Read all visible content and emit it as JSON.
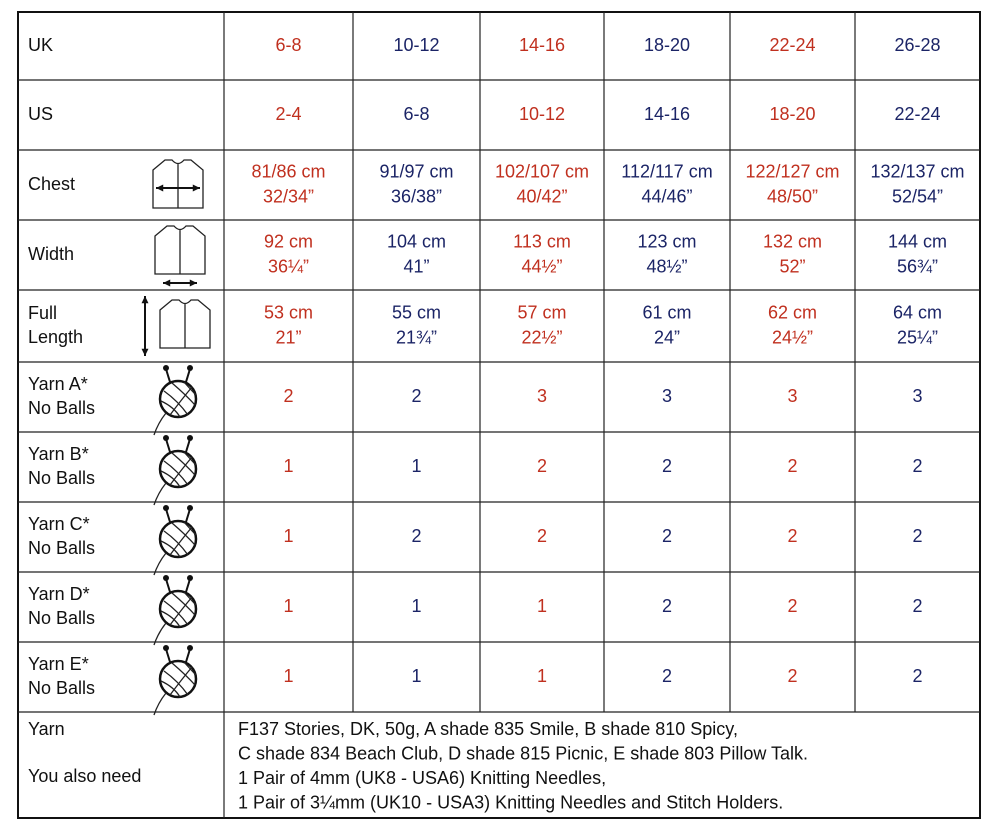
{
  "table": {
    "rows": [
      {
        "label": [
          "UK"
        ],
        "cells": [
          [
            "6-8"
          ],
          [
            "10-12"
          ],
          [
            "14-16"
          ],
          [
            "18-20"
          ],
          [
            "22-24"
          ],
          [
            "26-28"
          ]
        ]
      },
      {
        "label": [
          "US"
        ],
        "cells": [
          [
            "2-4"
          ],
          [
            "6-8"
          ],
          [
            "10-12"
          ],
          [
            "14-16"
          ],
          [
            "18-20"
          ],
          [
            "22-24"
          ]
        ]
      },
      {
        "label": [
          "Chest"
        ],
        "cells": [
          [
            "81/86 cm",
            "32/34”"
          ],
          [
            "91/97 cm",
            "36/38”"
          ],
          [
            "102/107 cm",
            "40/42”"
          ],
          [
            "112/117 cm",
            "44/46”"
          ],
          [
            "122/127 cm",
            "48/50”"
          ],
          [
            "132/137 cm",
            "52/54”"
          ]
        ]
      },
      {
        "label": [
          "Width"
        ],
        "cells": [
          [
            "92 cm",
            "36¼”"
          ],
          [
            "104 cm",
            "41”"
          ],
          [
            "113 cm",
            "44½”"
          ],
          [
            "123 cm",
            "48½”"
          ],
          [
            "132 cm",
            "52”"
          ],
          [
            "144 cm",
            "56¾”"
          ]
        ]
      },
      {
        "label": [
          "Full",
          "Length"
        ],
        "cells": [
          [
            "53 cm",
            "21”"
          ],
          [
            "55 cm",
            "21¾”"
          ],
          [
            "57 cm",
            "22½”"
          ],
          [
            "61 cm",
            "24”"
          ],
          [
            "62 cm",
            "24½”"
          ],
          [
            "64 cm",
            "25¼”"
          ]
        ]
      },
      {
        "label": [
          "Yarn A*",
          "No Balls"
        ],
        "cells": [
          [
            2
          ],
          [
            2
          ],
          [
            3
          ],
          [
            3
          ],
          [
            3
          ],
          [
            3
          ]
        ]
      },
      {
        "label": [
          "Yarn B*",
          "No Balls"
        ],
        "cells": [
          [
            1
          ],
          [
            1
          ],
          [
            2
          ],
          [
            2
          ],
          [
            2
          ],
          [
            2
          ]
        ]
      },
      {
        "label": [
          "Yarn C*",
          "No Balls"
        ],
        "cells": [
          [
            1
          ],
          [
            2
          ],
          [
            2
          ],
          [
            2
          ],
          [
            2
          ],
          [
            2
          ]
        ]
      },
      {
        "label": [
          "Yarn D*",
          "No Balls"
        ],
        "cells": [
          [
            1
          ],
          [
            1
          ],
          [
            1
          ],
          [
            2
          ],
          [
            2
          ],
          [
            2
          ]
        ]
      },
      {
        "label": [
          "Yarn E*",
          "No Balls"
        ],
        "cells": [
          [
            1
          ],
          [
            1
          ],
          [
            1
          ],
          [
            2
          ],
          [
            2
          ],
          [
            2
          ]
        ]
      }
    ],
    "footer": {
      "labels": [
        "Yarn",
        "You also need"
      ],
      "lines": [
        "F137 Stories, DK, 50g, A shade 835 Smile, B shade 810 Spicy,",
        "C shade 834 Beach Club, D shade 815 Picnic, E shade 803 Pillow Talk.",
        "1 Pair of 4mm (UK8 - USA6) Knitting Needles,",
        "1 Pair of 3¼mm (UK10 - USA3) Knitting Needles and Stitch Holders."
      ]
    }
  }
}
